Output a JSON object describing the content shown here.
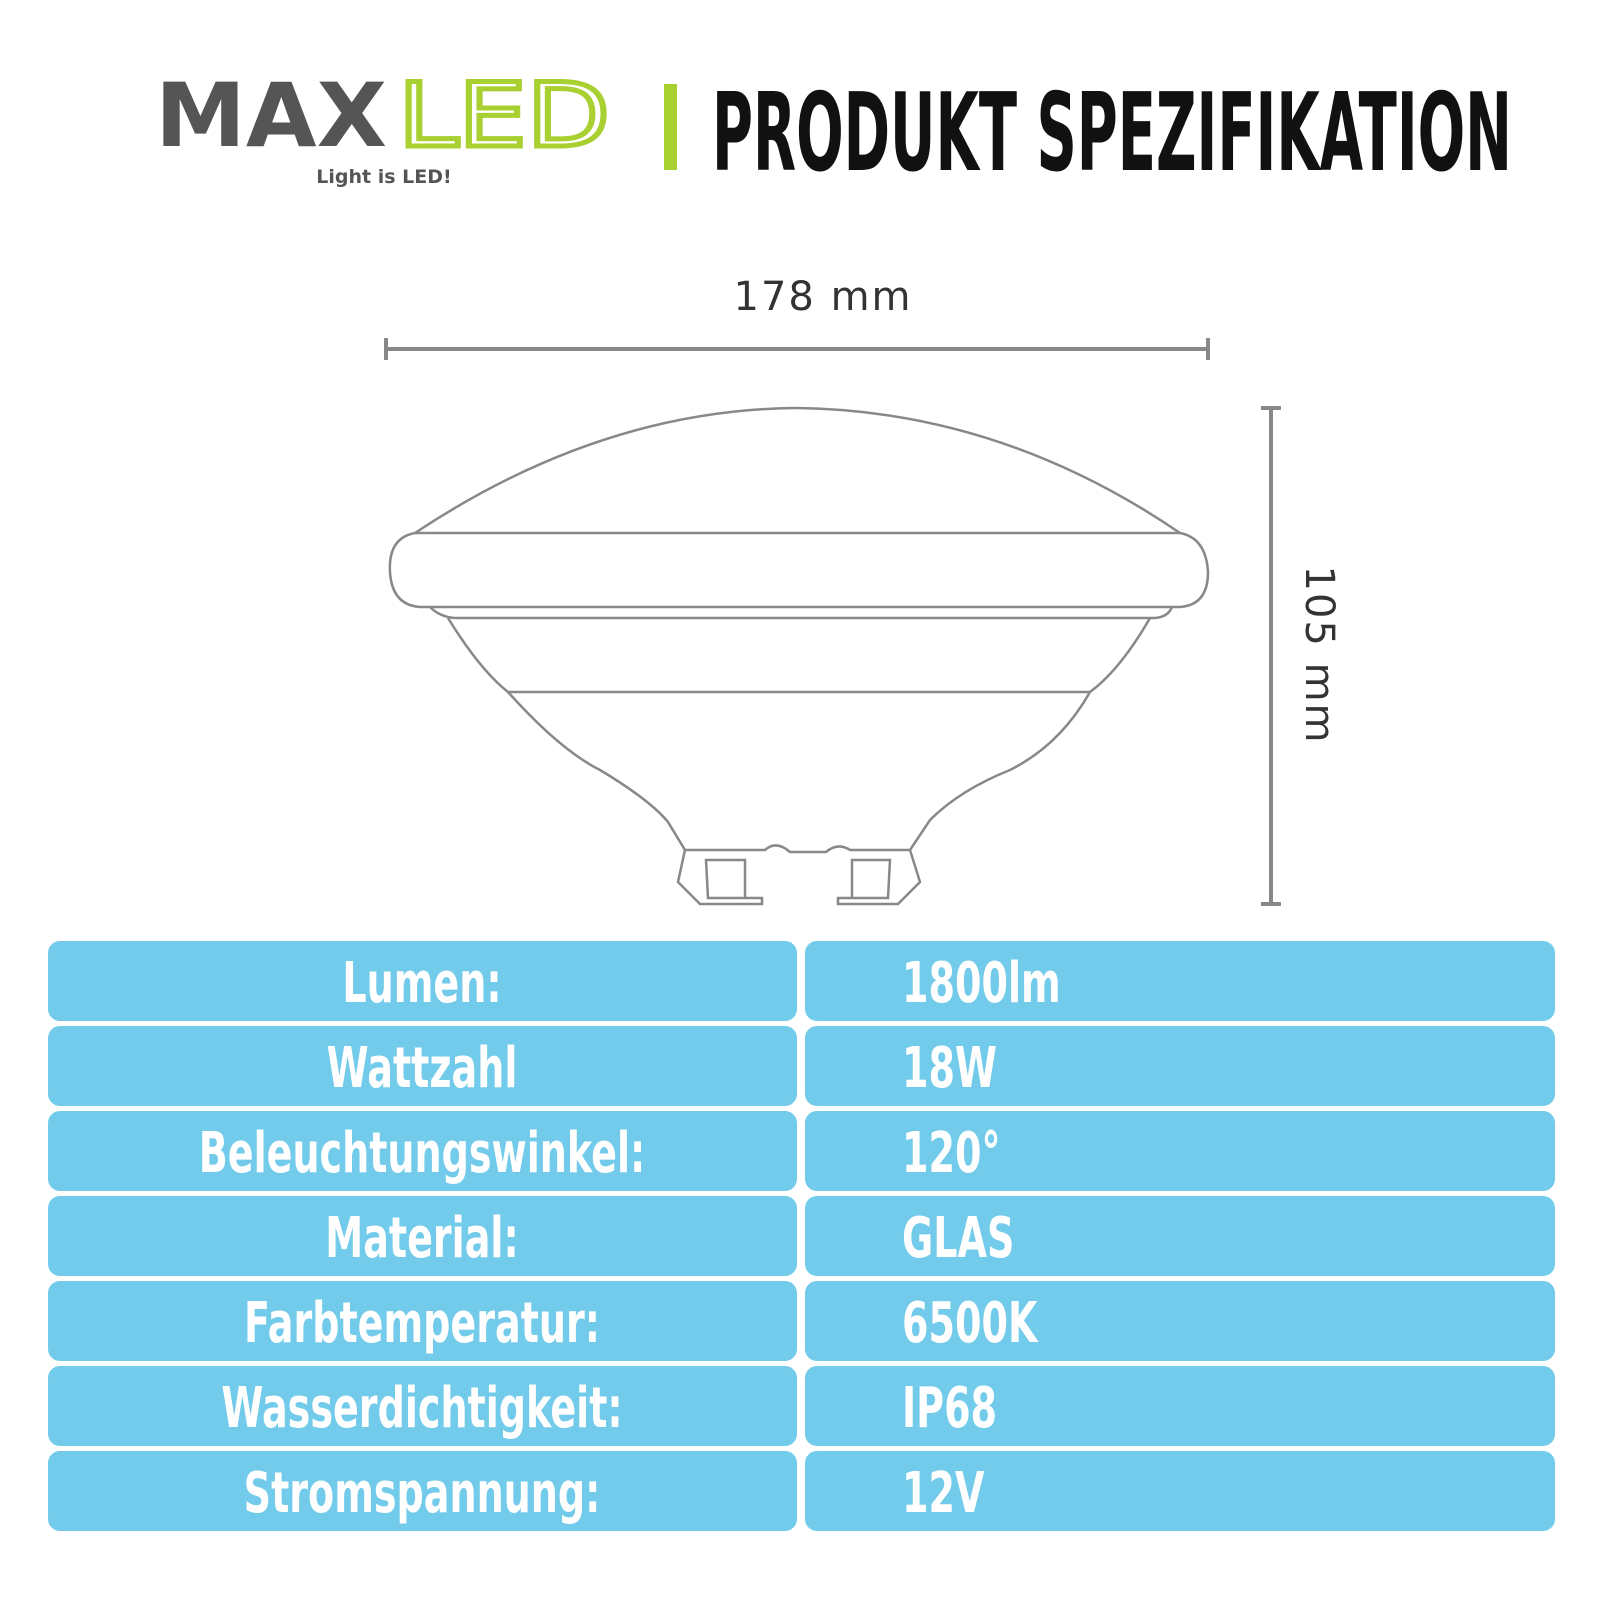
{
  "header": {
    "logo_max": "MAX",
    "logo_led": "LED",
    "tagline": "Light is LED!",
    "title": "PRODUKT SPEZIFIKATION"
  },
  "dimensions": {
    "width": "178 mm",
    "height": "105 mm"
  },
  "table": {
    "rows": [
      [
        "Lumen:",
        "1800lm"
      ],
      [
        "Wattzahl",
        "18W"
      ],
      [
        "Beleuchtungswinkel:",
        "120°"
      ],
      [
        "Material:",
        "GLAS"
      ],
      [
        "Farbtemperatur:",
        "6500K"
      ],
      [
        "Wasserdichtigkeit:",
        "IP68"
      ],
      [
        "Stromspannung:",
        "12V"
      ]
    ]
  }
}
